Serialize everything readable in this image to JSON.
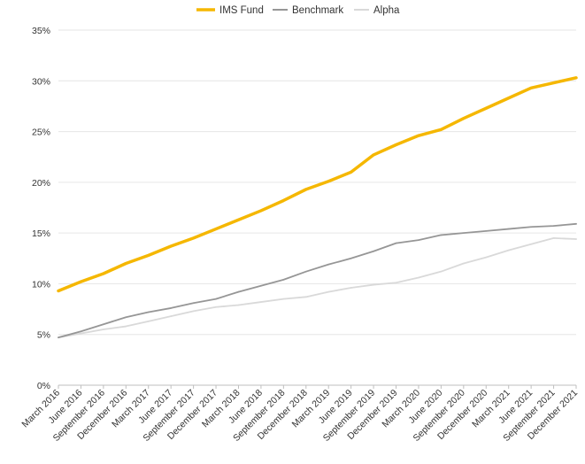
{
  "chart_data": {
    "type": "line",
    "title": "",
    "xlabel": "",
    "ylabel": "",
    "ylim": [
      0,
      35
    ],
    "y_ticks": [
      "0%",
      "5%",
      "10%",
      "15%",
      "20%",
      "25%",
      "30%",
      "35%"
    ],
    "y_tick_values": [
      0,
      5,
      10,
      15,
      20,
      25,
      30,
      35
    ],
    "x_tick_labels": [
      "March 2016",
      "June 2016",
      "September 2016",
      "December 2016",
      "March 2017",
      "June 2017",
      "September 2017",
      "December 2017",
      "March 2018",
      "June 2018",
      "September 2018",
      "December 2018",
      "March 2019",
      "June 2019",
      "September 2019",
      "December 2019",
      "March 2020",
      "June 2020",
      "September 2020",
      "December 2020",
      "March 2021",
      "June 2021",
      "September 2021",
      "December 2021"
    ],
    "grid": "horizontal",
    "legend_position": "top-center",
    "series": [
      {
        "name": "IMS Fund",
        "color": "#F5B700",
        "values": [
          9.3,
          10.2,
          11.0,
          12.0,
          12.8,
          13.7,
          14.5,
          15.4,
          16.3,
          17.2,
          18.2,
          19.3,
          20.1,
          21.0,
          22.7,
          23.7,
          24.6,
          25.2,
          26.3,
          27.3,
          28.3,
          29.3,
          29.8,
          30.3
        ]
      },
      {
        "name": "Benchmark",
        "color": "#969696",
        "values": [
          4.7,
          5.3,
          6.0,
          6.7,
          7.2,
          7.6,
          8.1,
          8.5,
          9.2,
          9.8,
          10.4,
          11.2,
          11.9,
          12.5,
          13.2,
          14.0,
          14.3,
          14.8,
          15.0,
          15.2,
          15.4,
          15.6,
          15.7,
          15.9
        ]
      },
      {
        "name": "Alpha",
        "color": "#D9D9D9",
        "values": [
          4.7,
          5.1,
          5.5,
          5.8,
          6.3,
          6.8,
          7.3,
          7.7,
          7.9,
          8.2,
          8.5,
          8.7,
          9.2,
          9.6,
          9.9,
          10.1,
          10.6,
          11.2,
          12.0,
          12.6,
          13.3,
          13.9,
          14.5,
          14.4
        ]
      }
    ]
  }
}
